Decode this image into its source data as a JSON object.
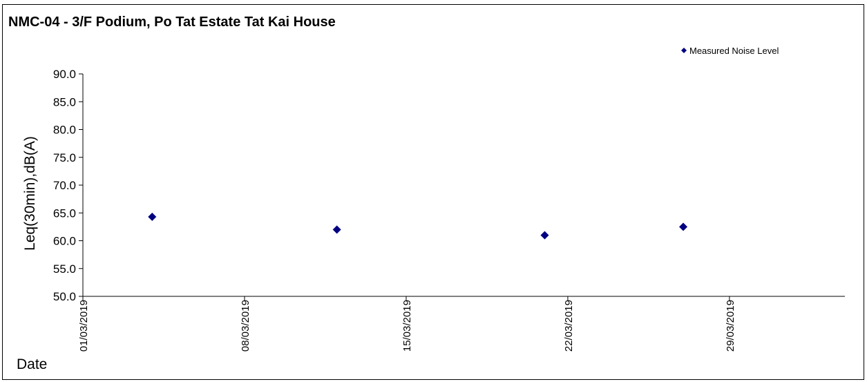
{
  "chart_data": {
    "type": "scatter",
    "title": "NMC-04 - 3/F Podium, Po Tat Estate Tat Kai House",
    "ylabel": "Leq(30min),dB(A)",
    "xlabel": "Date",
    "ylim": [
      50.0,
      90.0
    ],
    "yticks": [
      "50.0",
      "55.0",
      "60.0",
      "65.0",
      "70.0",
      "75.0",
      "80.0",
      "85.0",
      "90.0"
    ],
    "xlim": [
      "2019-03-01",
      "2019-04-03"
    ],
    "xticks": [
      {
        "date": "2019-03-01",
        "label": "01/03/2019"
      },
      {
        "date": "2019-03-08",
        "label": "08/03/2019"
      },
      {
        "date": "2019-03-15",
        "label": "15/03/2019"
      },
      {
        "date": "2019-03-22",
        "label": "22/03/2019"
      },
      {
        "date": "2019-03-29",
        "label": "29/03/2019"
      }
    ],
    "series": [
      {
        "name": "Measured Noise Level",
        "color": "#000080",
        "marker": "diamond",
        "points": [
          {
            "x": "2019-03-04",
            "y": 64.3
          },
          {
            "x": "2019-03-12",
            "y": 62.0
          },
          {
            "x": "2019-03-21",
            "y": 61.0
          },
          {
            "x": "2019-03-27",
            "y": 62.5
          }
        ]
      }
    ],
    "legend_position": "top-right",
    "grid": false
  }
}
